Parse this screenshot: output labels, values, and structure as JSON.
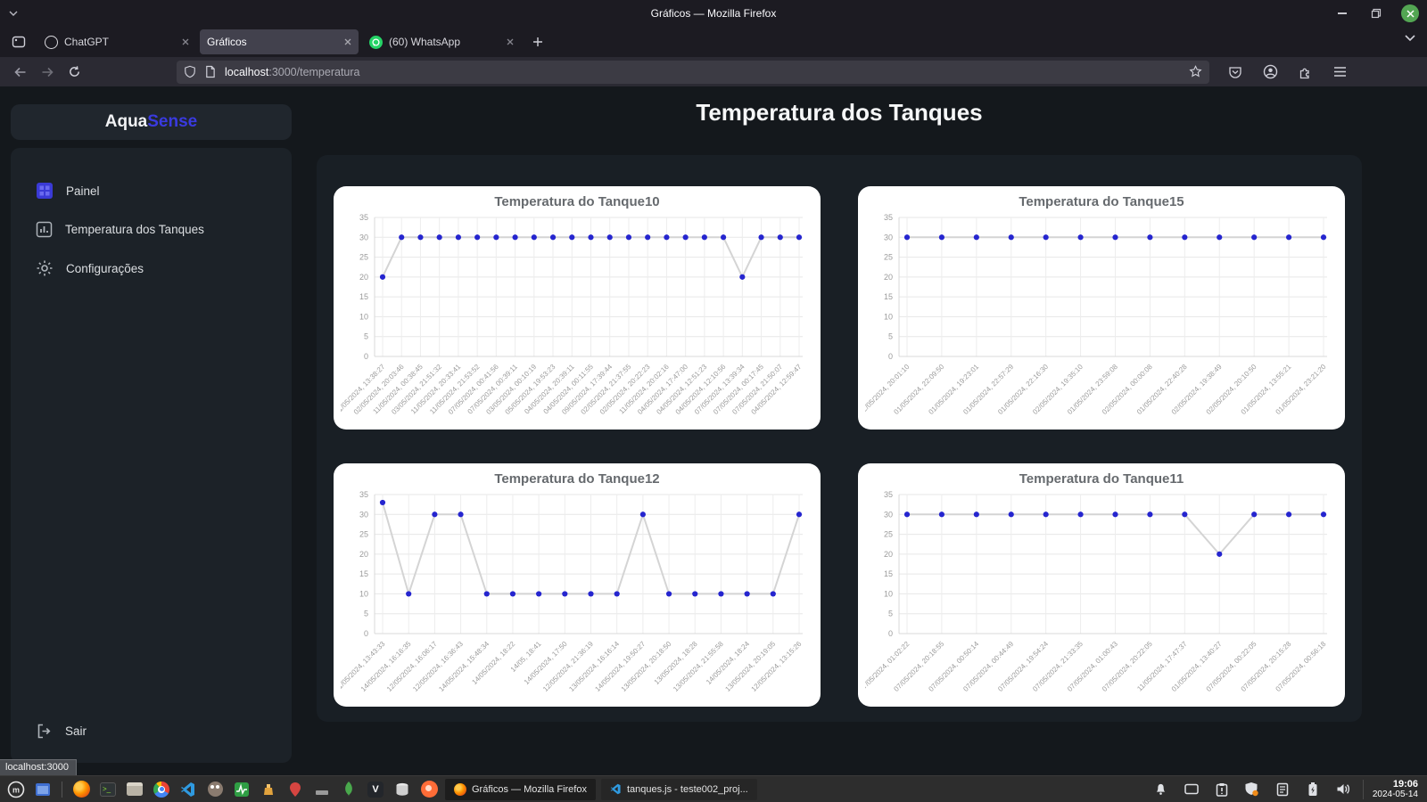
{
  "window": {
    "title": "Gráficos — Mozilla Firefox",
    "tabs": [
      {
        "label": "ChatGPT"
      },
      {
        "label": "Gráficos",
        "active": true
      },
      {
        "label": "(60) WhatsApp"
      }
    ],
    "url": {
      "host": "localhost",
      "rest": ":3000/temperatura"
    }
  },
  "sidebar": {
    "logo": {
      "part1": "Aqua",
      "part2": "Sense"
    },
    "items": [
      {
        "label": "Painel"
      },
      {
        "label": "Temperatura dos Tanques"
      },
      {
        "label": "Configurações"
      }
    ],
    "logout_label": "Sair"
  },
  "main": {
    "title": "Temperatura dos Tanques"
  },
  "status_tooltip": "localhost:3000",
  "taskbar": {
    "windows": [
      {
        "label": "Gráficos — Mozilla Firefox"
      },
      {
        "label": "tanques.js - teste002_proj..."
      }
    ],
    "clock": {
      "time": "19:06",
      "date": "2024-05-14"
    }
  },
  "colors": {
    "accent": "#3a3ae0",
    "chart_point": "#2525cf",
    "chart_line": "#d4d4d4",
    "card_bg": "#ffffff"
  },
  "chart_data": [
    {
      "type": "line",
      "title": "Temperatura do Tanque10",
      "ylim": [
        0,
        35
      ],
      "ytick_step": 5,
      "grid": true,
      "point_color": "#2525cf",
      "line_color": "#d4d4d4",
      "x": [
        "01/05/2024, 13:38:27",
        "02/05/2024, 20:03:46",
        "11/05/2024, 00:38:45",
        "03/05/2024, 21:51:32",
        "11/05/2024, 20:33:41",
        "11/05/2024, 21:53:52",
        "07/05/2024, 00:41:56",
        "07/05/2024, 00:39:11",
        "03/05/2024, 00:10:19",
        "05/05/2024, 19:53:23",
        "04/05/2024, 20:39:11",
        "04/05/2024, 00:11:55",
        "09/05/2024, 17:39:44",
        "02/05/2024, 21:37:55",
        "02/05/2024, 20:22:23",
        "11/05/2024, 20:02:16",
        "04/05/2024, 17:47:00",
        "04/05/2024, 12:51:23",
        "04/05/2024, 12:10:56",
        "07/05/2024, 13:39:34",
        "07/05/2024, 00:17:45",
        "07/05/2024, 21:50:07",
        "04/05/2024, 12:59:47"
      ],
      "values": [
        20,
        30,
        30,
        30,
        30,
        30,
        30,
        30,
        30,
        30,
        30,
        30,
        30,
        30,
        30,
        30,
        30,
        30,
        30,
        20,
        30,
        30,
        30
      ]
    },
    {
      "type": "line",
      "title": "Temperatura do Tanque15",
      "ylim": [
        0,
        35
      ],
      "ytick_step": 5,
      "grid": true,
      "point_color": "#2525cf",
      "line_color": "#d4d4d4",
      "x": [
        "02/05/2024, 20:01:10",
        "01/05/2024, 22:09:50",
        "01/05/2024, 19:23:01",
        "01/05/2024, 22:57:29",
        "01/05/2024, 22:16:30",
        "02/05/2024, 19:35:10",
        "01/05/2024, 23:59:08",
        "02/05/2024, 00:00:08",
        "01/05/2024, 22:40:28",
        "02/05/2024, 19:38:49",
        "02/05/2024, 20:10:50",
        "01/05/2024, 13:55:21",
        "01/05/2024, 23:21:20"
      ],
      "values": [
        30,
        30,
        30,
        30,
        30,
        30,
        30,
        30,
        30,
        30,
        30,
        30,
        30
      ]
    },
    {
      "type": "line",
      "title": "Temperatura do Tanque12",
      "ylim": [
        0,
        35
      ],
      "ytick_step": 5,
      "grid": true,
      "point_color": "#2525cf",
      "line_color": "#d4d4d4",
      "x": [
        "01/05/2024, 13:43:33",
        "14/05/2024, 16:16:35",
        "12/05/2024, 16:06:17",
        "12/05/2024, 16:36:43",
        "14/05/2024, 15:48:34",
        "14/05/2024, 18:22",
        "14/05, 18:41",
        "14/05/2024, 17:50",
        "12/05/2024, 21:36:19",
        "13/05/2024, 16:16:14",
        "14/05/2024, 19:50:27",
        "13/05/2024, 20:18:50",
        "13/05/2024, 18:28",
        "13/05/2024, 21:55:58",
        "14/05/2024, 18:24",
        "13/05/2024, 20:19:05",
        "12/05/2024, 13:15:26"
      ],
      "values": [
        33,
        10,
        30,
        30,
        10,
        10,
        10,
        10,
        10,
        10,
        30,
        10,
        10,
        10,
        10,
        10,
        30
      ]
    },
    {
      "type": "line",
      "title": "Temperatura do Tanque11",
      "ylim": [
        0,
        35
      ],
      "ytick_step": 5,
      "grid": true,
      "point_color": "#2525cf",
      "line_color": "#d4d4d4",
      "x": [
        "07/05/2024, 01:02:22",
        "07/05/2024, 20:18:55",
        "07/05/2024, 00:50:14",
        "07/05/2024, 00:44:49",
        "07/05/2024, 19:54:24",
        "07/05/2024, 21:33:35",
        "07/05/2024, 01:00:43",
        "07/05/2024, 20:22:05",
        "11/05/2024, 17:47:37",
        "01/05/2024, 13:40:27",
        "07/05/2024, 00:22:05",
        "07/05/2024, 20:15:28",
        "07/05/2024, 00:56:18"
      ],
      "values": [
        30,
        30,
        30,
        30,
        30,
        30,
        30,
        30,
        30,
        20,
        30,
        30,
        30
      ]
    }
  ]
}
